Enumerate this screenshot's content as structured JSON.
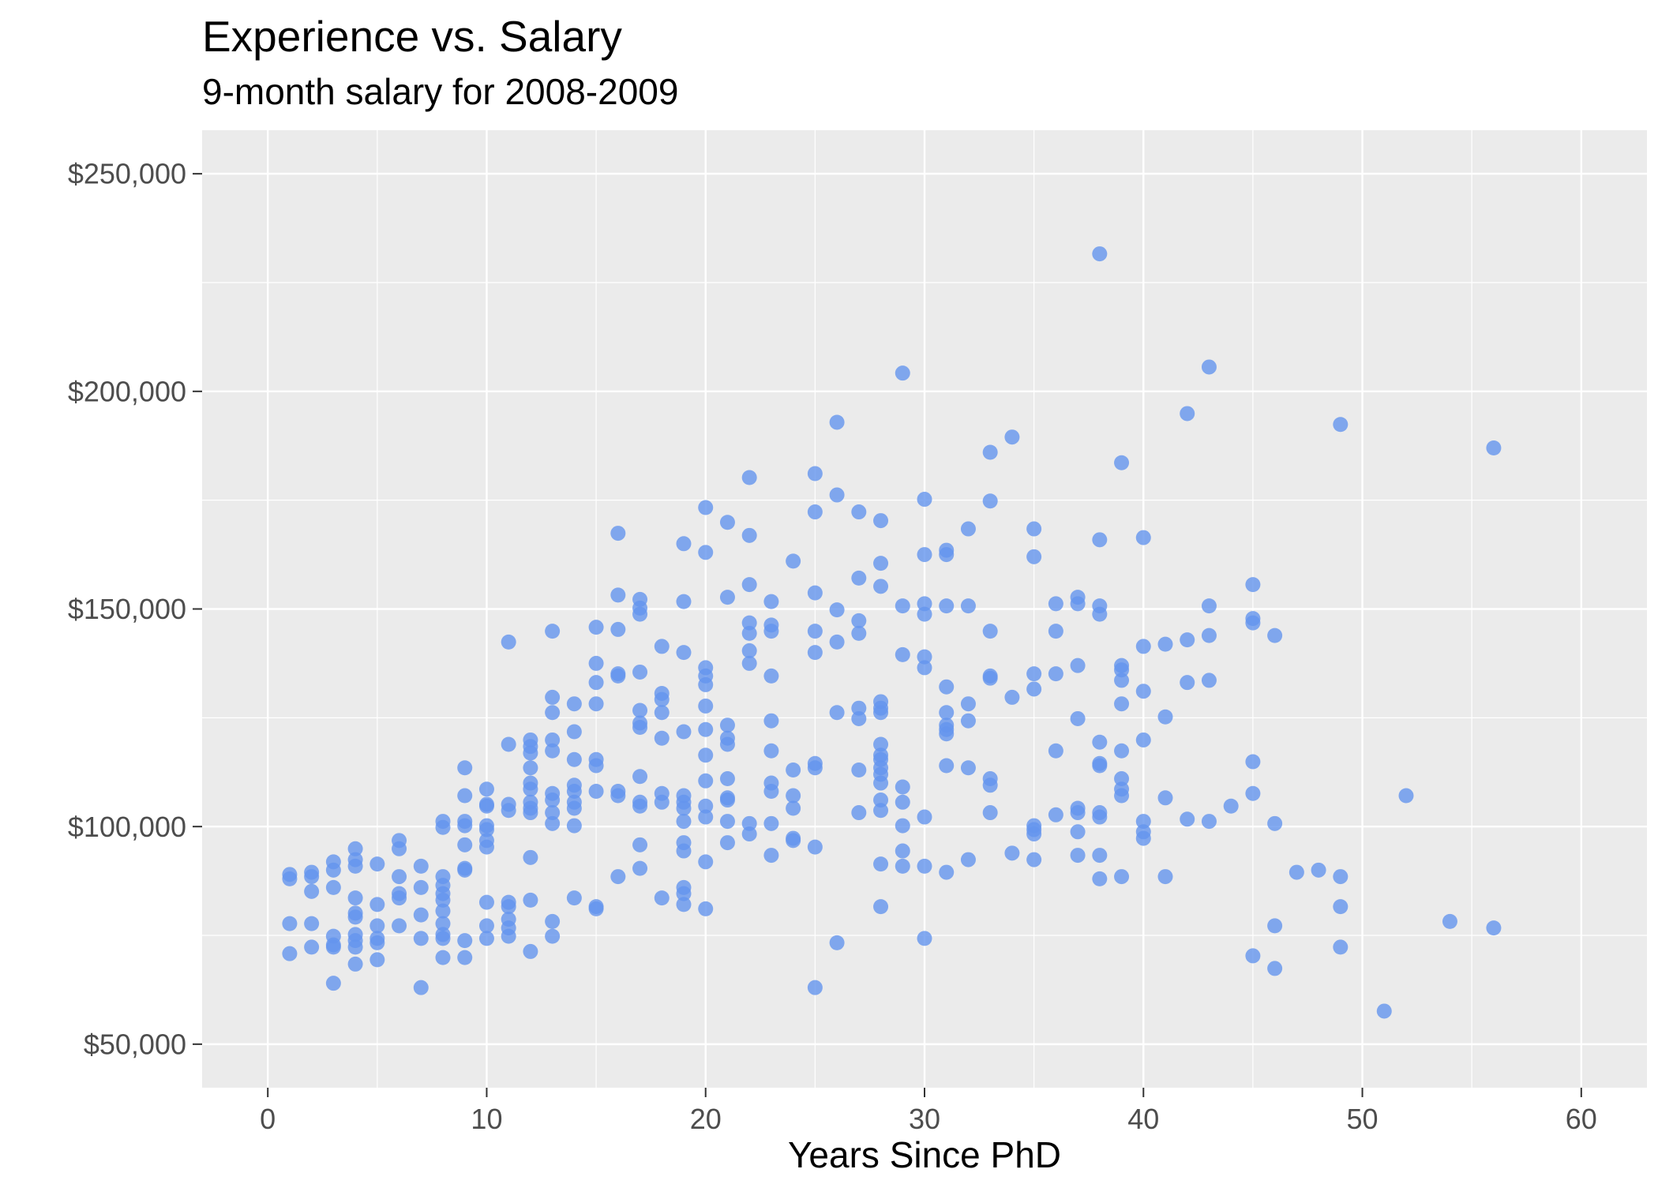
{
  "chart_data": {
    "type": "scatter",
    "title": "Experience vs. Salary",
    "subtitle": "9-month salary for 2008-2009",
    "xlabel": "Years Since PhD",
    "xlim": [
      -3,
      63
    ],
    "ylim": [
      40000,
      260000
    ],
    "xticks": [
      0,
      10,
      20,
      30,
      40,
      50,
      60
    ],
    "xtick_labels": [
      "0",
      "10",
      "20",
      "30",
      "40",
      "50",
      "60"
    ],
    "yticks": [
      50000,
      100000,
      150000,
      200000,
      250000
    ],
    "ytick_labels": [
      "$50,000",
      "$100,000",
      "$150,000",
      "$200,000",
      "$250,000"
    ],
    "grid": true,
    "colors": {
      "point": "#6495ED",
      "panel_background": "#EBEBEB",
      "grid": "#FFFFFF"
    },
    "points": [
      [
        1,
        89000
      ],
      [
        1,
        88000
      ],
      [
        1,
        77700
      ],
      [
        1,
        70800
      ],
      [
        2,
        89500
      ],
      [
        2,
        88500
      ],
      [
        2,
        85100
      ],
      [
        2,
        77700
      ],
      [
        2,
        72300
      ],
      [
        3,
        91900
      ],
      [
        3,
        90000
      ],
      [
        3,
        86000
      ],
      [
        3,
        74800
      ],
      [
        3,
        72800
      ],
      [
        3,
        72300
      ],
      [
        3,
        64000
      ],
      [
        4,
        94900
      ],
      [
        4,
        92400
      ],
      [
        4,
        90900
      ],
      [
        4,
        83600
      ],
      [
        4,
        80100
      ],
      [
        4,
        79200
      ],
      [
        4,
        75200
      ],
      [
        4,
        73800
      ],
      [
        4,
        72300
      ],
      [
        4,
        68400
      ],
      [
        5,
        91400
      ],
      [
        5,
        82100
      ],
      [
        5,
        77200
      ],
      [
        5,
        74300
      ],
      [
        5,
        73300
      ],
      [
        5,
        69400
      ],
      [
        6,
        96800
      ],
      [
        6,
        94900
      ],
      [
        6,
        88500
      ],
      [
        6,
        84600
      ],
      [
        6,
        83600
      ],
      [
        6,
        77200
      ],
      [
        7,
        90900
      ],
      [
        7,
        86000
      ],
      [
        7,
        79700
      ],
      [
        7,
        74300
      ],
      [
        7,
        63000
      ],
      [
        8,
        101200
      ],
      [
        8,
        99800
      ],
      [
        8,
        88500
      ],
      [
        8,
        86500
      ],
      [
        8,
        84600
      ],
      [
        8,
        83100
      ],
      [
        8,
        80600
      ],
      [
        8,
        77700
      ],
      [
        8,
        75200
      ],
      [
        8,
        74300
      ],
      [
        8,
        69900
      ],
      [
        9,
        113500
      ],
      [
        9,
        107100
      ],
      [
        9,
        101200
      ],
      [
        9,
        100200
      ],
      [
        9,
        95800
      ],
      [
        9,
        90400
      ],
      [
        9,
        90000
      ],
      [
        9,
        73800
      ],
      [
        9,
        69900
      ],
      [
        10,
        108600
      ],
      [
        10,
        105100
      ],
      [
        10,
        104700
      ],
      [
        10,
        100200
      ],
      [
        10,
        99300
      ],
      [
        10,
        96800
      ],
      [
        10,
        95300
      ],
      [
        10,
        82600
      ],
      [
        10,
        77200
      ],
      [
        10,
        74300
      ],
      [
        11,
        142400
      ],
      [
        11,
        118900
      ],
      [
        11,
        105100
      ],
      [
        11,
        103700
      ],
      [
        11,
        82600
      ],
      [
        11,
        81600
      ],
      [
        11,
        78700
      ],
      [
        11,
        76700
      ],
      [
        11,
        74800
      ],
      [
        12,
        119900
      ],
      [
        12,
        118400
      ],
      [
        12,
        116900
      ],
      [
        12,
        113500
      ],
      [
        12,
        110000
      ],
      [
        12,
        108600
      ],
      [
        12,
        105600
      ],
      [
        12,
        104200
      ],
      [
        12,
        103200
      ],
      [
        12,
        92900
      ],
      [
        12,
        83100
      ],
      [
        12,
        71300
      ],
      [
        13,
        144900
      ],
      [
        13,
        129700
      ],
      [
        13,
        126200
      ],
      [
        13,
        119900
      ],
      [
        13,
        117400
      ],
      [
        13,
        107600
      ],
      [
        13,
        106100
      ],
      [
        13,
        103200
      ],
      [
        13,
        100700
      ],
      [
        13,
        78200
      ],
      [
        13,
        74800
      ],
      [
        14,
        128200
      ],
      [
        14,
        121800
      ],
      [
        14,
        115400
      ],
      [
        14,
        109500
      ],
      [
        14,
        108100
      ],
      [
        14,
        105600
      ],
      [
        14,
        104200
      ],
      [
        14,
        100200
      ],
      [
        14,
        83600
      ],
      [
        15,
        145800
      ],
      [
        15,
        137500
      ],
      [
        15,
        133100
      ],
      [
        15,
        128200
      ],
      [
        15,
        115400
      ],
      [
        15,
        114000
      ],
      [
        15,
        108100
      ],
      [
        15,
        81600
      ],
      [
        15,
        81100
      ],
      [
        16,
        167400
      ],
      [
        16,
        153200
      ],
      [
        16,
        145300
      ],
      [
        16,
        135100
      ],
      [
        16,
        134600
      ],
      [
        16,
        108100
      ],
      [
        16,
        107100
      ],
      [
        16,
        88500
      ],
      [
        17,
        152200
      ],
      [
        17,
        150200
      ],
      [
        17,
        148800
      ],
      [
        17,
        135500
      ],
      [
        17,
        126700
      ],
      [
        17,
        123800
      ],
      [
        17,
        122800
      ],
      [
        17,
        111500
      ],
      [
        17,
        105600
      ],
      [
        17,
        104700
      ],
      [
        17,
        95800
      ],
      [
        17,
        90400
      ],
      [
        18,
        141400
      ],
      [
        18,
        130600
      ],
      [
        18,
        129200
      ],
      [
        18,
        126200
      ],
      [
        18,
        120300
      ],
      [
        18,
        107600
      ],
      [
        18,
        105600
      ],
      [
        18,
        83600
      ],
      [
        19,
        165000
      ],
      [
        19,
        151700
      ],
      [
        19,
        140000
      ],
      [
        19,
        121800
      ],
      [
        19,
        107100
      ],
      [
        19,
        105600
      ],
      [
        19,
        104200
      ],
      [
        19,
        101200
      ],
      [
        19,
        96300
      ],
      [
        19,
        94400
      ],
      [
        19,
        86000
      ],
      [
        19,
        84600
      ],
      [
        19,
        82100
      ],
      [
        20,
        173300
      ],
      [
        20,
        163000
      ],
      [
        20,
        136500
      ],
      [
        20,
        134600
      ],
      [
        20,
        132600
      ],
      [
        20,
        127700
      ],
      [
        20,
        122300
      ],
      [
        20,
        116400
      ],
      [
        20,
        110500
      ],
      [
        20,
        104700
      ],
      [
        20,
        102200
      ],
      [
        20,
        91900
      ],
      [
        20,
        81100
      ],
      [
        21,
        169900
      ],
      [
        21,
        152700
      ],
      [
        21,
        123300
      ],
      [
        21,
        120300
      ],
      [
        21,
        118900
      ],
      [
        21,
        111000
      ],
      [
        21,
        106600
      ],
      [
        21,
        106100
      ],
      [
        21,
        101200
      ],
      [
        21,
        96300
      ],
      [
        22,
        180200
      ],
      [
        22,
        166900
      ],
      [
        22,
        155600
      ],
      [
        22,
        146800
      ],
      [
        22,
        144400
      ],
      [
        22,
        140400
      ],
      [
        22,
        137500
      ],
      [
        22,
        100700
      ],
      [
        22,
        98300
      ],
      [
        23,
        151700
      ],
      [
        23,
        146300
      ],
      [
        23,
        144900
      ],
      [
        23,
        134600
      ],
      [
        23,
        124300
      ],
      [
        23,
        117400
      ],
      [
        23,
        110000
      ],
      [
        23,
        108100
      ],
      [
        23,
        100700
      ],
      [
        23,
        93400
      ],
      [
        24,
        161000
      ],
      [
        24,
        113000
      ],
      [
        24,
        107100
      ],
      [
        24,
        104200
      ],
      [
        24,
        97300
      ],
      [
        24,
        96800
      ],
      [
        25,
        181100
      ],
      [
        25,
        172300
      ],
      [
        25,
        153700
      ],
      [
        25,
        144900
      ],
      [
        25,
        140000
      ],
      [
        25,
        114500
      ],
      [
        25,
        113500
      ],
      [
        25,
        95300
      ],
      [
        25,
        63000
      ],
      [
        26,
        192900
      ],
      [
        26,
        176200
      ],
      [
        26,
        149800
      ],
      [
        26,
        142400
      ],
      [
        26,
        126200
      ],
      [
        26,
        73300
      ],
      [
        27,
        172300
      ],
      [
        27,
        157100
      ],
      [
        27,
        147300
      ],
      [
        27,
        144400
      ],
      [
        27,
        127200
      ],
      [
        27,
        124800
      ],
      [
        27,
        113000
      ],
      [
        27,
        103200
      ],
      [
        28,
        170300
      ],
      [
        28,
        160500
      ],
      [
        28,
        155200
      ],
      [
        28,
        128700
      ],
      [
        28,
        127200
      ],
      [
        28,
        126200
      ],
      [
        28,
        118900
      ],
      [
        28,
        116400
      ],
      [
        28,
        115400
      ],
      [
        28,
        113500
      ],
      [
        28,
        112000
      ],
      [
        28,
        110000
      ],
      [
        28,
        106100
      ],
      [
        28,
        103700
      ],
      [
        28,
        91400
      ],
      [
        28,
        81600
      ],
      [
        29,
        204200
      ],
      [
        29,
        150700
      ],
      [
        29,
        139500
      ],
      [
        29,
        109100
      ],
      [
        29,
        105600
      ],
      [
        29,
        100200
      ],
      [
        29,
        94400
      ],
      [
        29,
        90900
      ],
      [
        30,
        175200
      ],
      [
        30,
        162500
      ],
      [
        30,
        151200
      ],
      [
        30,
        148800
      ],
      [
        30,
        139000
      ],
      [
        30,
        136500
      ],
      [
        30,
        102200
      ],
      [
        30,
        90900
      ],
      [
        30,
        74300
      ],
      [
        31,
        163500
      ],
      [
        31,
        162500
      ],
      [
        31,
        150700
      ],
      [
        31,
        132100
      ],
      [
        31,
        126200
      ],
      [
        31,
        123300
      ],
      [
        31,
        122300
      ],
      [
        31,
        121300
      ],
      [
        31,
        114000
      ],
      [
        31,
        89500
      ],
      [
        32,
        168400
      ],
      [
        32,
        150700
      ],
      [
        32,
        128200
      ],
      [
        32,
        124300
      ],
      [
        32,
        113500
      ],
      [
        32,
        92400
      ],
      [
        33,
        186000
      ],
      [
        33,
        174800
      ],
      [
        33,
        144900
      ],
      [
        33,
        134600
      ],
      [
        33,
        134100
      ],
      [
        33,
        111000
      ],
      [
        33,
        109500
      ],
      [
        33,
        103200
      ],
      [
        34,
        189500
      ],
      [
        34,
        129700
      ],
      [
        34,
        93900
      ],
      [
        35,
        168400
      ],
      [
        35,
        162000
      ],
      [
        35,
        135100
      ],
      [
        35,
        131600
      ],
      [
        35,
        100200
      ],
      [
        35,
        99300
      ],
      [
        35,
        98300
      ],
      [
        35,
        92400
      ],
      [
        36,
        151200
      ],
      [
        36,
        144900
      ],
      [
        36,
        135100
      ],
      [
        36,
        117400
      ],
      [
        36,
        102700
      ],
      [
        37,
        152700
      ],
      [
        37,
        151200
      ],
      [
        37,
        137000
      ],
      [
        37,
        124800
      ],
      [
        37,
        104200
      ],
      [
        37,
        103200
      ],
      [
        37,
        98800
      ],
      [
        37,
        93400
      ],
      [
        38,
        231600
      ],
      [
        38,
        165900
      ],
      [
        38,
        150700
      ],
      [
        38,
        148800
      ],
      [
        38,
        119400
      ],
      [
        38,
        114500
      ],
      [
        38,
        114000
      ],
      [
        38,
        103200
      ],
      [
        38,
        102200
      ],
      [
        38,
        93400
      ],
      [
        38,
        88000
      ],
      [
        39,
        183600
      ],
      [
        39,
        137000
      ],
      [
        39,
        136000
      ],
      [
        39,
        133600
      ],
      [
        39,
        128200
      ],
      [
        39,
        117400
      ],
      [
        39,
        111000
      ],
      [
        39,
        108600
      ],
      [
        39,
        107100
      ],
      [
        39,
        88500
      ],
      [
        40,
        166400
      ],
      [
        40,
        141400
      ],
      [
        40,
        131100
      ],
      [
        40,
        119900
      ],
      [
        40,
        101200
      ],
      [
        40,
        98800
      ],
      [
        40,
        97300
      ],
      [
        41,
        141900
      ],
      [
        41,
        125200
      ],
      [
        41,
        106600
      ],
      [
        41,
        88500
      ],
      [
        42,
        194900
      ],
      [
        42,
        142900
      ],
      [
        42,
        133100
      ],
      [
        42,
        101700
      ],
      [
        43,
        205600
      ],
      [
        43,
        150700
      ],
      [
        43,
        143900
      ],
      [
        43,
        133600
      ],
      [
        43,
        101200
      ],
      [
        44,
        104700
      ],
      [
        45,
        155600
      ],
      [
        45,
        147800
      ],
      [
        45,
        146800
      ],
      [
        45,
        114900
      ],
      [
        45,
        107600
      ],
      [
        45,
        70300
      ],
      [
        46,
        143900
      ],
      [
        46,
        100700
      ],
      [
        46,
        77200
      ],
      [
        46,
        67400
      ],
      [
        47,
        89500
      ],
      [
        48,
        90000
      ],
      [
        49,
        192400
      ],
      [
        49,
        88500
      ],
      [
        49,
        81600
      ],
      [
        49,
        72300
      ],
      [
        51,
        57600
      ],
      [
        52,
        107100
      ],
      [
        54,
        78200
      ],
      [
        56,
        187000
      ],
      [
        56,
        76700
      ]
    ]
  }
}
